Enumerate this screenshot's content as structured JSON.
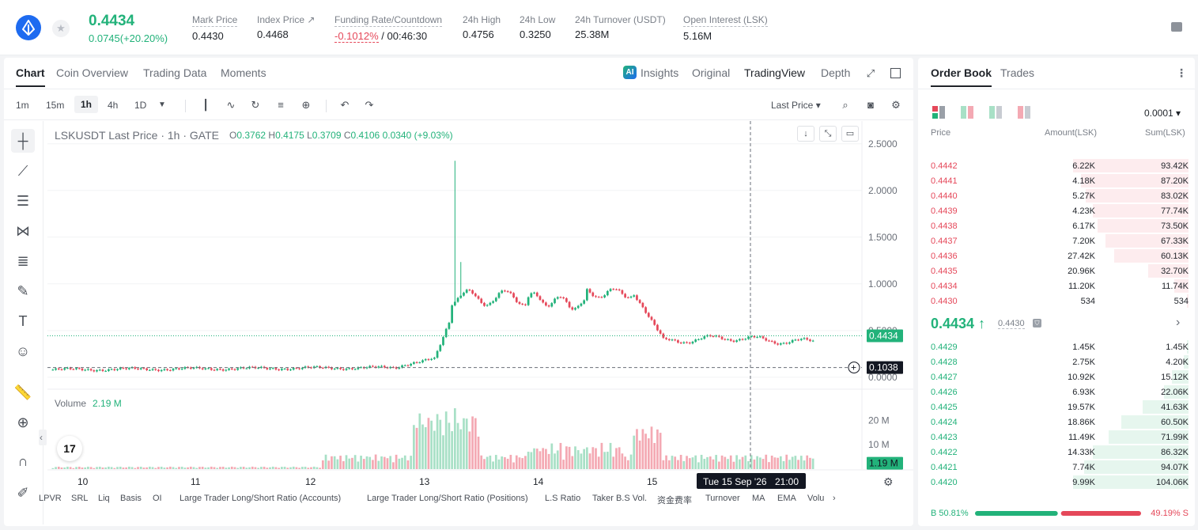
{
  "header": {
    "last_price": "0.4434",
    "change": "0.0745(+20.20%)",
    "stats": [
      {
        "label": "Mark Price",
        "value": "0.4430"
      },
      {
        "label": "Index Price ↗",
        "value": "0.4468"
      },
      {
        "label": "Funding Rate/Countdown",
        "value_red": "-0.1012%",
        "value": "/ 00:46:30"
      },
      {
        "label": "24h High",
        "value": "0.4756"
      },
      {
        "label": "24h Low",
        "value": "0.3250"
      },
      {
        "label": "24h Turnover (USDT)",
        "value": "25.38M"
      },
      {
        "label": "Open Interest (LSK)",
        "value": "5.16M"
      }
    ]
  },
  "tabs": [
    "Chart",
    "Coin Overview",
    "Trading Data",
    "Moments"
  ],
  "views": {
    "ai": "AI",
    "insights": "Insights",
    "original": "Original",
    "tradingview": "TradingView",
    "depth": "Depth"
  },
  "timeframes": [
    "1m",
    "15m",
    "1h",
    "4h",
    "1D"
  ],
  "price_type": "Last Price ▾",
  "plot": {
    "title": "LSKUSDT Last Price · 1h · GATE",
    "o": "0.3762",
    "h": "0.4175",
    "l": "0.3709",
    "c": "0.4106",
    "chg": "0.0340 (+9.03%)",
    "volume_label": "Volume",
    "volume_value": "2.19 M",
    "tv_logo": "17",
    "crosshair_date": "Tue 15 Sep '26",
    "crosshair_time": "21:00",
    "crosshair_price": "0.1038",
    "current_price_tag": "0.4434",
    "volume_tag": "1.19 M",
    "price_ticks": [
      "2.5000",
      "2.0000",
      "1.5000",
      "1.0000",
      "0.5000",
      "0.0000"
    ],
    "volume_ticks": [
      "20 M",
      "10 M"
    ],
    "date_ticks": [
      "10",
      "11",
      "12",
      "13",
      "14",
      "15"
    ]
  },
  "indicators": [
    "LPVR",
    "SRL",
    "Liq",
    "Basis",
    "OI",
    "Large Trader Long/Short Ratio (Accounts)",
    "Large Trader Long/Short Ratio (Positions)",
    "L.S Ratio",
    "Taker B.S Vol.",
    "资金费率",
    "Turnover",
    "MA",
    "EMA",
    "Volu"
  ],
  "orderbook": {
    "tabs": [
      "Order Book",
      "Trades"
    ],
    "precision": "0.0001 ▾",
    "head": {
      "price": "Price",
      "amount": "Amount(LSK)",
      "sum": "Sum(LSK)"
    },
    "asks": [
      {
        "p": "0.4442",
        "a": "6.22K",
        "s": "93.42K",
        "d": 1.0
      },
      {
        "p": "0.4441",
        "a": "4.18K",
        "s": "87.20K",
        "d": 0.933
      },
      {
        "p": "0.4440",
        "a": "5.27K",
        "s": "83.02K",
        "d": 0.889
      },
      {
        "p": "0.4439",
        "a": "4.23K",
        "s": "77.74K",
        "d": 0.832
      },
      {
        "p": "0.4438",
        "a": "6.17K",
        "s": "73.50K",
        "d": 0.787
      },
      {
        "p": "0.4437",
        "a": "7.20K",
        "s": "67.33K",
        "d": 0.721
      },
      {
        "p": "0.4436",
        "a": "27.42K",
        "s": "60.13K",
        "d": 0.644
      },
      {
        "p": "0.4435",
        "a": "20.96K",
        "s": "32.70K",
        "d": 0.35
      },
      {
        "p": "0.4434",
        "a": "11.20K",
        "s": "11.74K",
        "d": 0.126
      },
      {
        "p": "0.4430",
        "a": "534",
        "s": "534",
        "d": 0.01
      }
    ],
    "last": "0.4434 ↑",
    "mark": "0.4430",
    "bids": [
      {
        "p": "0.4429",
        "a": "1.45K",
        "s": "1.45K",
        "d": 0.014
      },
      {
        "p": "0.4428",
        "a": "2.75K",
        "s": "4.20K",
        "d": 0.04
      },
      {
        "p": "0.4427",
        "a": "10.92K",
        "s": "15.12K",
        "d": 0.145
      },
      {
        "p": "0.4426",
        "a": "6.93K",
        "s": "22.06K",
        "d": 0.212
      },
      {
        "p": "0.4425",
        "a": "19.57K",
        "s": "41.63K",
        "d": 0.4
      },
      {
        "p": "0.4424",
        "a": "18.86K",
        "s": "60.50K",
        "d": 0.581
      },
      {
        "p": "0.4423",
        "a": "11.49K",
        "s": "71.99K",
        "d": 0.691
      },
      {
        "p": "0.4422",
        "a": "14.33K",
        "s": "86.32K",
        "d": 0.829
      },
      {
        "p": "0.4421",
        "a": "7.74K",
        "s": "94.07K",
        "d": 0.903
      },
      {
        "p": "0.4420",
        "a": "9.99K",
        "s": "104.06K",
        "d": 1.0
      }
    ],
    "buy_ratio": "B 50.81%",
    "sell_ratio": "49.19% S",
    "buy_fraction": 0.5081
  },
  "colors": {
    "up": "#22b27a",
    "down": "#e5485a",
    "up_vol": "#a8e0c6",
    "down_vol": "#f4a9b3"
  }
}
